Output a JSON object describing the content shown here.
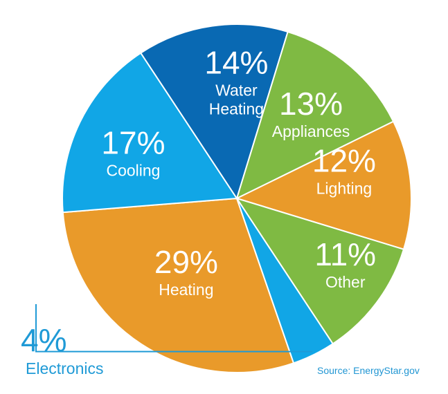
{
  "chart_data": {
    "type": "pie",
    "slices": [
      {
        "label": "Heating",
        "value_label": "29%",
        "value": 29,
        "color": "#e99a2a"
      },
      {
        "label": "Cooling",
        "value_label": "17%",
        "value": 17,
        "color": "#11a6e6"
      },
      {
        "label": "Water\nHeating",
        "value_label": "14%",
        "value": 14,
        "color": "#0969b3"
      },
      {
        "label": "Appliances",
        "value_label": "13%",
        "value": 13,
        "color": "#7fba43"
      },
      {
        "label": "Lighting",
        "value_label": "12%",
        "value": 12,
        "color": "#e99a2a"
      },
      {
        "label": "Other",
        "value_label": "11%",
        "value": 11,
        "color": "#7fba43"
      },
      {
        "label": "Electronics",
        "value_label": "4%",
        "value": 4,
        "color": "#11a6e6"
      }
    ],
    "source": "Source: EnergyStar.gov",
    "callout_color": "#1f9ad6"
  }
}
